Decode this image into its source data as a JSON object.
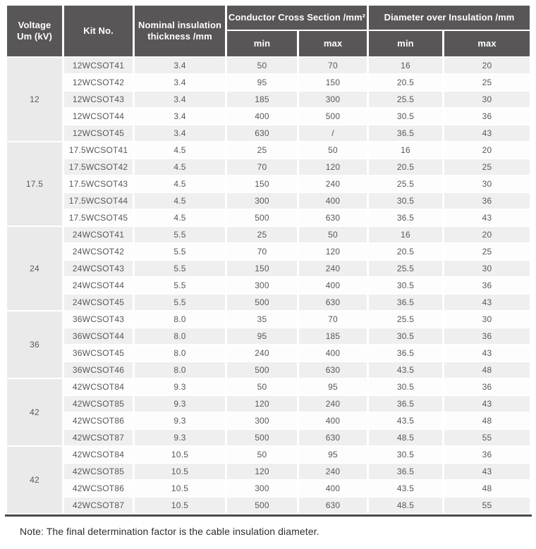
{
  "table": {
    "header": {
      "voltage": "Voltage\nUm (kV)",
      "kit_no": "Kit No.",
      "nominal": "Nominal insulation\nthickness /mm",
      "conductor_group": "Conductor Cross Section /mm²",
      "diameter_group": "Diameter over Insulation /mm",
      "min": "min",
      "max": "max"
    },
    "groups": [
      {
        "voltage": "12",
        "rows": [
          [
            "12WCSOT41",
            "3.4",
            "50",
            "70",
            "16",
            "20"
          ],
          [
            "12WCSOT42",
            "3.4",
            "95",
            "150",
            "20.5",
            "25"
          ],
          [
            "12WCSOT43",
            "3.4",
            "185",
            "300",
            "25.5",
            "30"
          ],
          [
            "12WCSOT44",
            "3.4",
            "400",
            "500",
            "30.5",
            "36"
          ],
          [
            "12WCSOT45",
            "3.4",
            "630",
            "/",
            "36.5",
            "43"
          ]
        ]
      },
      {
        "voltage": "17.5",
        "rows": [
          [
            "17.5WCSOT41",
            "4.5",
            "25",
            "50",
            "16",
            "20"
          ],
          [
            "17.5WCSOT42",
            "4.5",
            "70",
            "120",
            "20.5",
            "25"
          ],
          [
            "17.5WCSOT43",
            "4.5",
            "150",
            "240",
            "25.5",
            "30"
          ],
          [
            "17.5WCSOT44",
            "4.5",
            "300",
            "400",
            "30.5",
            "36"
          ],
          [
            "17.5WCSOT45",
            "4.5",
            "500",
            "630",
            "36.5",
            "43"
          ]
        ]
      },
      {
        "voltage": "24",
        "rows": [
          [
            "24WCSOT41",
            "5.5",
            "25",
            "50",
            "16",
            "20"
          ],
          [
            "24WCSOT42",
            "5.5",
            "70",
            "120",
            "20.5",
            "25"
          ],
          [
            "24WCSOT43",
            "5.5",
            "150",
            "240",
            "25.5",
            "30"
          ],
          [
            "24WCSOT44",
            "5.5",
            "300",
            "400",
            "30.5",
            "36"
          ],
          [
            "24WCSOT45",
            "5.5",
            "500",
            "630",
            "36.5",
            "43"
          ]
        ]
      },
      {
        "voltage": "36",
        "rows": [
          [
            "36WCSOT43",
            "8.0",
            "35",
            "70",
            "25.5",
            "30"
          ],
          [
            "36WCSOT44",
            "8.0",
            "95",
            "185",
            "30.5",
            "36"
          ],
          [
            "36WCSOT45",
            "8.0",
            "240",
            "400",
            "36.5",
            "43"
          ],
          [
            "36WCSOT46",
            "8.0",
            "500",
            "630",
            "43.5",
            "48"
          ]
        ]
      },
      {
        "voltage": "42",
        "rows": [
          [
            "42WCSOT84",
            "9.3",
            "50",
            "95",
            "30.5",
            "36"
          ],
          [
            "42WCSOT85",
            "9.3",
            "120",
            "240",
            "36.5",
            "43"
          ],
          [
            "42WCSOT86",
            "9.3",
            "300",
            "400",
            "43.5",
            "48"
          ],
          [
            "42WCSOT87",
            "9.3",
            "500",
            "630",
            "48.5",
            "55"
          ]
        ]
      },
      {
        "voltage": "42",
        "rows": [
          [
            "42WCSOT84",
            "10.5",
            "50",
            "95",
            "30.5",
            "36"
          ],
          [
            "42WCSOT85",
            "10.5",
            "120",
            "240",
            "36.5",
            "43"
          ],
          [
            "42WCSOT86",
            "10.5",
            "300",
            "400",
            "43.5",
            "48"
          ],
          [
            "42WCSOT87",
            "10.5",
            "500",
            "630",
            "48.5",
            "55"
          ]
        ]
      }
    ]
  },
  "note": "Note: The final determination factor is the cable insulation diameter.",
  "colors": {
    "header_bg": "#595657",
    "stripe_gray": "#efefef",
    "stripe_white": "#fdfdfd",
    "voltage_bg": "#eaeaea",
    "body_text": "#58585a",
    "rule_color": "#4a4a4a",
    "note_color": "#2e2e2e"
  }
}
